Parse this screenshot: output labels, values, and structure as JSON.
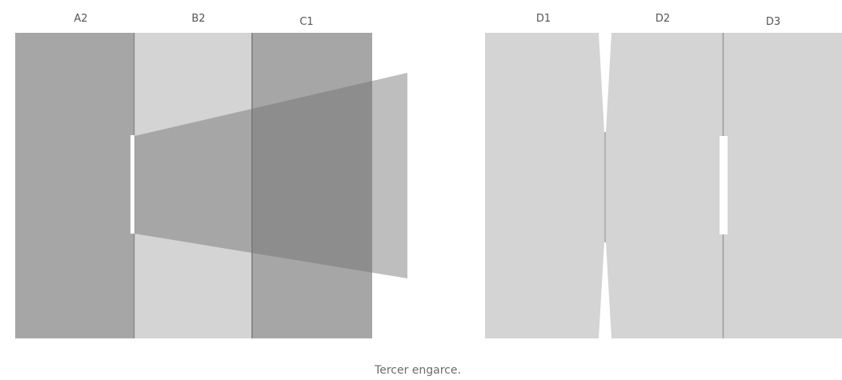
{
  "panels": {
    "a2": "A2",
    "b2": "B2",
    "c1": "C1",
    "d1": "D1",
    "d2": "D2",
    "d3": "D3"
  },
  "caption": "Tercer engarce.",
  "colors": {
    "background": "#ffffff",
    "panel_dark": "#a6a6a6",
    "panel_light": "#d4d4d4",
    "divider": "#8a8a8a",
    "projection": "#6e6e6e",
    "opening": "#ffffff",
    "label_text": "#555555"
  }
}
